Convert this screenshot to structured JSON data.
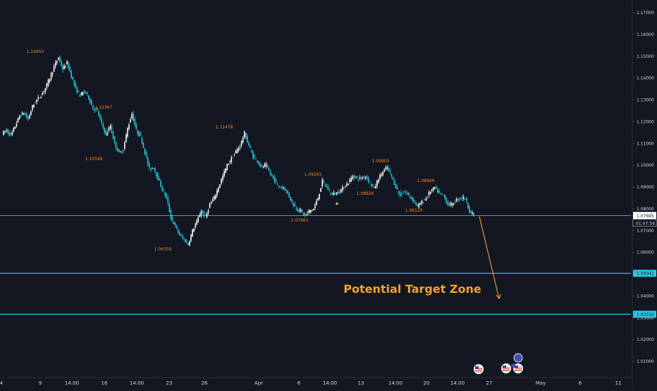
{
  "chart_data": {
    "type": "candlestick",
    "y_axis": {
      "ticks": [
        "1.17000",
        "1.16000",
        "1.15000",
        "1.14000",
        "1.13000",
        "1.12000",
        "1.11000",
        "1.10000",
        "1.09000",
        "1.08000",
        "1.07000",
        "1.06000",
        "1.05000",
        "1.04000",
        "1.03000",
        "1.02000",
        "1.01000"
      ],
      "range": [
        1.0015,
        1.176
      ]
    },
    "x_axis": {
      "ticks": [
        "4",
        "9",
        "14:00",
        "16",
        "14:00",
        "23",
        "26",
        "Apr",
        "6",
        "14:00",
        "13",
        "14:00",
        "20",
        "14:00",
        "27",
        "May",
        "6",
        "11"
      ]
    },
    "colors": {
      "up": "#ffffff",
      "down": "#26c6da",
      "annotation": "#f0861d",
      "zone": "#26c6da",
      "price_line": "#c8ccd4"
    },
    "price_path": [
      1.1145,
      1.116,
      1.1135,
      1.118,
      1.1225,
      1.124,
      1.121,
      1.127,
      1.13,
      1.132,
      1.1355,
      1.14,
      1.145,
      1.1495,
      1.144,
      1.147,
      1.141,
      1.135,
      1.132,
      1.134,
      1.131,
      1.126,
      1.125,
      1.119,
      1.114,
      1.118,
      1.11,
      1.1055,
      1.107,
      1.117,
      1.1236,
      1.116,
      1.113,
      1.106,
      1.098,
      1.099,
      1.094,
      1.089,
      1.085,
      1.076,
      1.072,
      1.068,
      1.066,
      1.0636,
      1.07,
      1.074,
      1.079,
      1.076,
      1.082,
      1.085,
      1.09,
      1.095,
      1.1,
      1.103,
      1.106,
      1.109,
      1.1147,
      1.109,
      1.104,
      1.102,
      1.099,
      1.1,
      1.096,
      1.093,
      1.09,
      1.09,
      1.087,
      1.083,
      1.08,
      1.079,
      1.0768,
      1.079,
      1.08,
      1.085,
      1.0926,
      1.09,
      1.087,
      1.087,
      1.088,
      1.09,
      1.092,
      1.095,
      1.094,
      1.094,
      1.095,
      1.092,
      1.0893,
      1.094,
      1.097,
      1.099,
      1.095,
      1.09,
      1.086,
      1.088,
      1.086,
      1.084,
      1.0812,
      1.083,
      1.085,
      1.088,
      1.0897,
      1.087,
      1.086,
      1.082,
      1.082,
      1.084,
      1.085,
      1.085,
      1.079,
      1.0769
    ],
    "high_low_labels": [
      "1.14950",
      "1.12367",
      "1.10549",
      "1.11478",
      "1.06359",
      "1.09265",
      "1.07683",
      "1.08926",
      "1.09905",
      "1.08966",
      "1.08120"
    ],
    "current_price": {
      "value": 1.07695,
      "label": "1.07695",
      "countdown": "01:47:54"
    },
    "target_zone": {
      "upper": 1.05041,
      "lower": 1.03162,
      "upper_label": "1.05041",
      "lower_label": "1.03162",
      "title": "Potential Target Zone"
    },
    "projection": {
      "from": 1.0768,
      "to": 1.0375
    },
    "grid": false,
    "legend": "none"
  }
}
